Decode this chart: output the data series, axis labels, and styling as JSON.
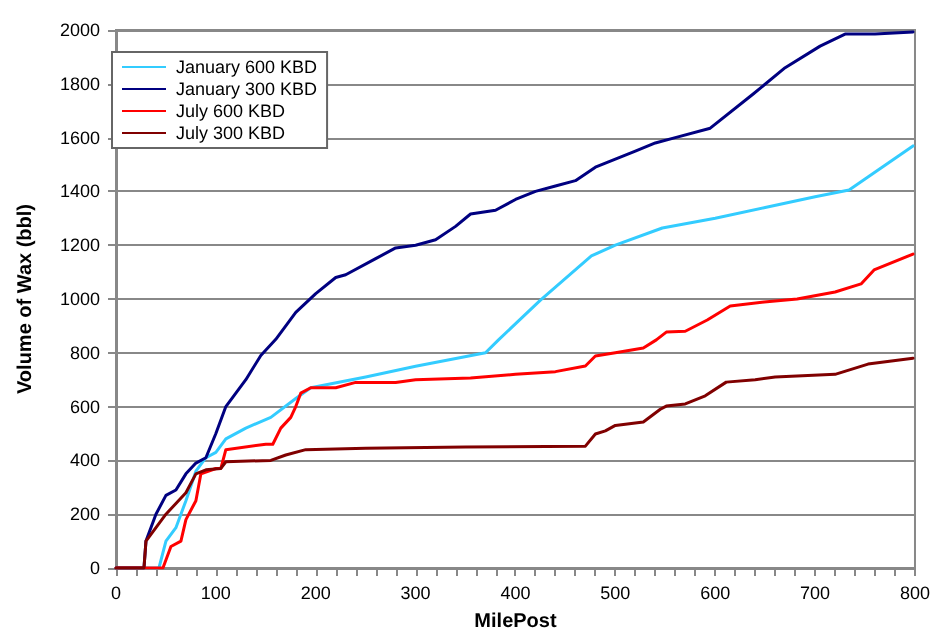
{
  "chart_data": {
    "type": "line",
    "xlabel": "MilePost",
    "ylabel": "Volume of Wax (bbl)",
    "xlim": [
      0,
      800
    ],
    "ylim": [
      0,
      2000
    ],
    "xticks": [
      0,
      {
        "value": 20,
        "label": null
      },
      {
        "value": 40,
        "label": null
      },
      {
        "value": 60,
        "label": null
      },
      {
        "value": 80,
        "label": null
      },
      100,
      {
        "value": 120,
        "label": null
      },
      {
        "value": 140,
        "label": null
      },
      {
        "value": 160,
        "label": null
      },
      {
        "value": 180,
        "label": null
      },
      200,
      {
        "value": 220,
        "label": null
      },
      {
        "value": 240,
        "label": null
      },
      {
        "value": 260,
        "label": null
      },
      {
        "value": 280,
        "label": null
      },
      300,
      {
        "value": 320,
        "label": null
      },
      {
        "value": 340,
        "label": null
      },
      {
        "value": 360,
        "label": null
      },
      {
        "value": 380,
        "label": null
      },
      400,
      {
        "value": 420,
        "label": null
      },
      {
        "value": 440,
        "label": null
      },
      {
        "value": 460,
        "label": null
      },
      {
        "value": 480,
        "label": null
      },
      500,
      {
        "value": 520,
        "label": null
      },
      {
        "value": 540,
        "label": null
      },
      {
        "value": 560,
        "label": null
      },
      {
        "value": 580,
        "label": null
      },
      600,
      {
        "value": 620,
        "label": null
      },
      {
        "value": 640,
        "label": null
      },
      {
        "value": 660,
        "label": null
      },
      {
        "value": 680,
        "label": null
      },
      700,
      {
        "value": 720,
        "label": null
      },
      {
        "value": 740,
        "label": null
      },
      {
        "value": 760,
        "label": null
      },
      {
        "value": 780,
        "label": null
      },
      800
    ],
    "yticks": [
      0,
      200,
      400,
      600,
      800,
      1000,
      1200,
      1400,
      1600,
      1800,
      2000
    ],
    "grid": "y",
    "legend": "top left",
    "marker": "none",
    "line_style": "solid",
    "series": [
      {
        "name": "January 600 KBD",
        "color": "#33ccff",
        "x": [
          0,
          43,
          50,
          60,
          70,
          80,
          90,
          100,
          110,
          130,
          155,
          180,
          195,
          250,
          300,
          370,
          383,
          425,
          476,
          500,
          547,
          600,
          650,
          700,
          734,
          798
        ],
        "values": [
          0,
          0,
          100,
          150,
          250,
          360,
          410,
          430,
          480,
          520,
          560,
          630,
          670,
          710,
          750,
          800,
          848,
          996,
          1160,
          1200,
          1264,
          1300,
          1340,
          1380,
          1405,
          1569
        ]
      },
      {
        "name": "January 300 KBD",
        "color": "#000080",
        "x": [
          0,
          28,
          30,
          40,
          50,
          60,
          70,
          80,
          90,
          100,
          110,
          130,
          145,
          160,
          180,
          200,
          220,
          230,
          260,
          280,
          300,
          320,
          340,
          355,
          380,
          400,
          420,
          440,
          460,
          480,
          500,
          520,
          540,
          560,
          595,
          638,
          670,
          705,
          730,
          760,
          798
        ],
        "values": [
          0,
          0,
          100,
          200,
          270,
          290,
          350,
          390,
          410,
          500,
          600,
          700,
          790,
          850,
          950,
          1020,
          1080,
          1090,
          1150,
          1190,
          1200,
          1220,
          1270,
          1316,
          1330,
          1370,
          1400,
          1420,
          1440,
          1490,
          1520,
          1550,
          1580,
          1600,
          1635,
          1762,
          1860,
          1940,
          1985,
          1985,
          1993
        ]
      },
      {
        "name": "July 600 KBD",
        "color": "#ff0000",
        "x": [
          0,
          47,
          55,
          65,
          70,
          80,
          85,
          100,
          105,
          110,
          150,
          157,
          165,
          175,
          180,
          185,
          195,
          220,
          240,
          280,
          300,
          355,
          400,
          440,
          470,
          480,
          500,
          528,
          541,
          551,
          570,
          592,
          615,
          649,
          682,
          720,
          746,
          759,
          798
        ],
        "values": [
          0,
          0,
          80,
          100,
          180,
          250,
          350,
          370,
          370,
          440,
          460,
          460,
          520,
          560,
          600,
          650,
          670,
          670,
          690,
          690,
          700,
          706,
          720,
          730,
          751,
          788,
          800,
          818,
          848,
          877,
          880,
          922,
          974,
          989,
          1000,
          1026,
          1056,
          1108,
          1167
        ]
      },
      {
        "name": "July 300 KBD",
        "color": "#800000",
        "x": [
          0,
          28,
          30,
          40,
          50,
          60,
          70,
          80,
          90,
          105,
          110,
          155,
          170,
          190,
          250,
          350,
          470,
          480,
          490,
          500,
          528,
          545,
          551,
          570,
          590,
          611,
          640,
          660,
          720,
          753,
          798
        ],
        "values": [
          0,
          0,
          100,
          150,
          200,
          240,
          280,
          350,
          365,
          370,
          395,
          400,
          420,
          440,
          445,
          450,
          453,
          498,
          510,
          530,
          543,
          590,
          602,
          610,
          640,
          691,
          700,
          710,
          720,
          758,
          780
        ]
      }
    ]
  }
}
